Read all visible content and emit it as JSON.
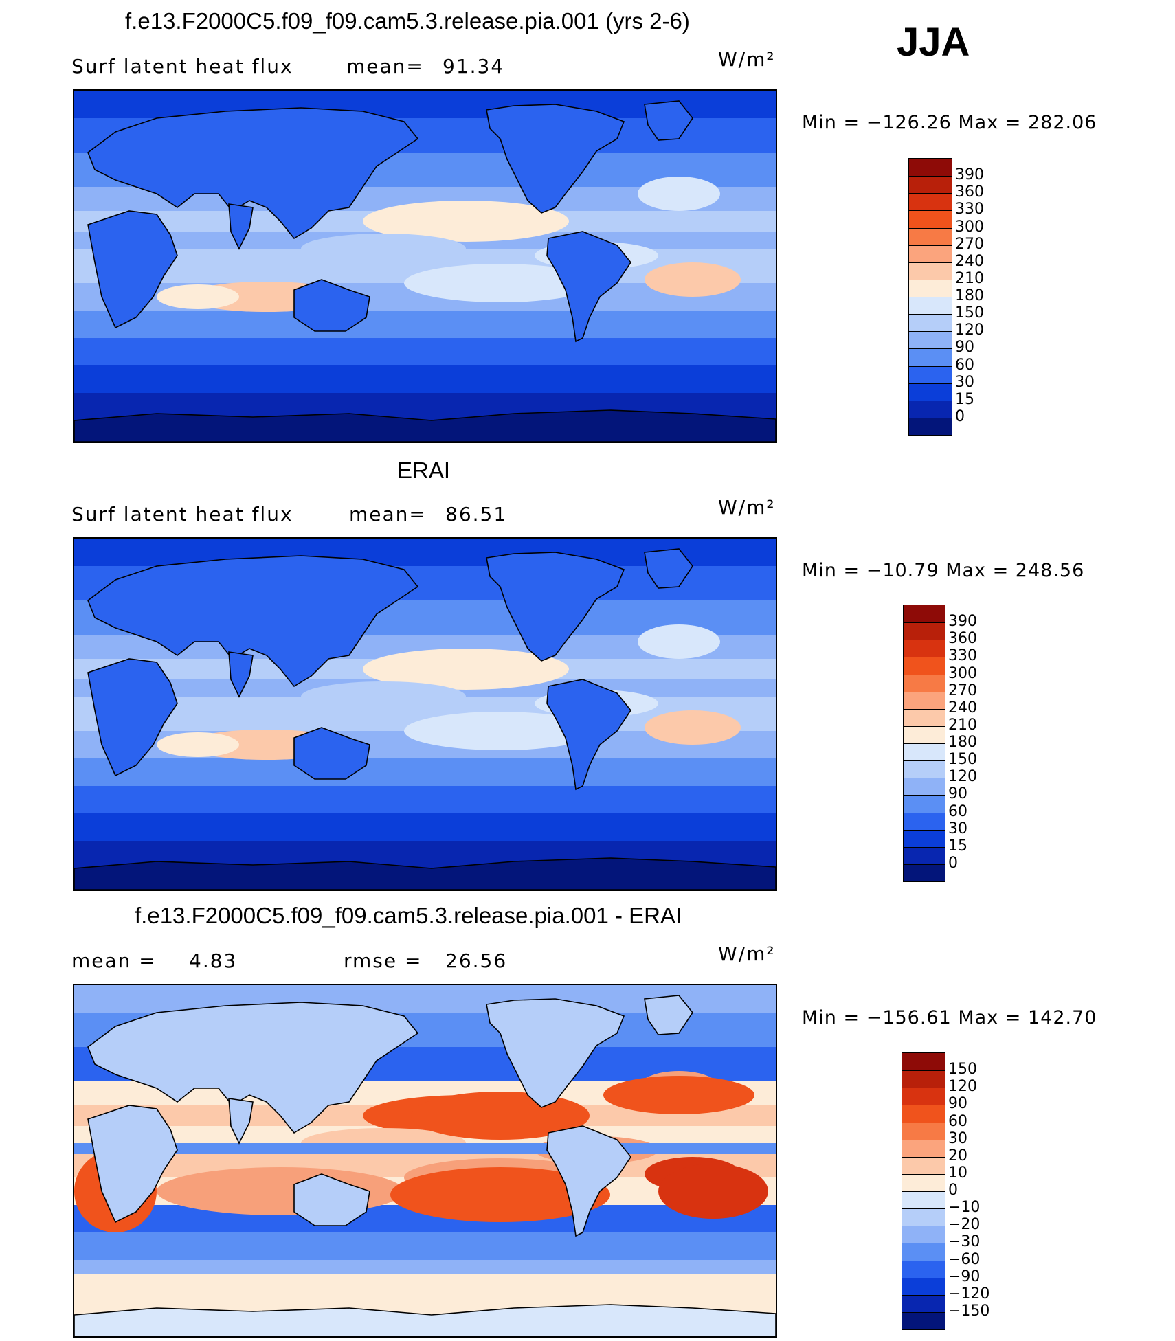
{
  "season": "JJA",
  "panels": [
    {
      "title": "f.e13.F2000C5.f09_f09.cam5.3.release.pia.001 (yrs 2-6)",
      "variable": "Surf  latent  heat  flux",
      "stat_label": "mean=",
      "stat_value": "91.34",
      "units": "W/m²",
      "minmax": "Min  =  −126.26  Max  =  282.06",
      "colorbar": {
        "labels": [
          "390",
          "360",
          "330",
          "300",
          "270",
          "240",
          "210",
          "180",
          "150",
          "120",
          "90",
          "60",
          "30",
          "15",
          "0"
        ],
        "colors": [
          "#8e0b07",
          "#b8200a",
          "#d83310",
          "#f0531c",
          "#f77a45",
          "#fba47d",
          "#fcc9aa",
          "#fdecd8",
          "#d8e7fb",
          "#b5cef9",
          "#8fb2f7",
          "#5b8ff4",
          "#2b63ef",
          "#0b3ed9",
          "#0826b0",
          "#03157a"
        ]
      },
      "palette": {
        "c0": "#03157a",
        "c1": "#0826b0",
        "c2": "#0b3ed9",
        "c3": "#2b63ef",
        "c4": "#5b8ff4",
        "c5": "#8fb2f7",
        "c6": "#b5cef9",
        "c7": "#d8e7fb",
        "c8": "#fdecd8",
        "c9": "#fcc9aa",
        "c10": "#f7a07a"
      }
    },
    {
      "title": "ERAI",
      "variable": "Surf  latent  heat  flux",
      "stat_label": "mean=",
      "stat_value": "86.51",
      "units": "W/m²",
      "minmax": "Min  =  −10.79  Max  =  248.56",
      "colorbar": {
        "labels": [
          "390",
          "360",
          "330",
          "300",
          "270",
          "240",
          "210",
          "180",
          "150",
          "120",
          "90",
          "60",
          "30",
          "15",
          "0"
        ],
        "colors": [
          "#8e0b07",
          "#b8200a",
          "#d83310",
          "#f0531c",
          "#f77a45",
          "#fba47d",
          "#fcc9aa",
          "#fdecd8",
          "#d8e7fb",
          "#b5cef9",
          "#8fb2f7",
          "#5b8ff4",
          "#2b63ef",
          "#0b3ed9",
          "#0826b0",
          "#03157a"
        ]
      },
      "palette": {
        "c0": "#03157a",
        "c1": "#0826b0",
        "c2": "#0b3ed9",
        "c3": "#2b63ef",
        "c4": "#5b8ff4",
        "c5": "#8fb2f7",
        "c6": "#b5cef9",
        "c7": "#d8e7fb",
        "c8": "#fdecd8",
        "c9": "#fcc9aa",
        "c10": "#f7a07a"
      }
    },
    {
      "title": "f.e13.F2000C5.f09_f09.cam5.3.release.pia.001 - ERAI",
      "mean_label": "mean  =",
      "mean_value": "4.83",
      "rmse_label": "rmse  =",
      "rmse_value": "26.56",
      "units": "W/m²",
      "minmax": "Min  =  −156.61  Max  =  142.70",
      "colorbar": {
        "labels": [
          "150",
          "120",
          "90",
          "60",
          "30",
          "20",
          "10",
          "0",
          "−10",
          "−20",
          "−30",
          "−60",
          "−90",
          "−120",
          "−150"
        ],
        "colors": [
          "#8e0b07",
          "#b8200a",
          "#d83310",
          "#f0531c",
          "#f77a45",
          "#fba47d",
          "#fcc9aa",
          "#fdecd8",
          "#d8e7fb",
          "#b5cef9",
          "#8fb2f7",
          "#5b8ff4",
          "#2b63ef",
          "#0b3ed9",
          "#0826b0",
          "#03157a"
        ]
      },
      "palette": {
        "c0": "#d8e7fb",
        "c1": "#b5cef9",
        "c2": "#8fb2f7",
        "c3": "#5b8ff4",
        "c4": "#2b63ef",
        "c5": "#fdecd8",
        "c6": "#fcc9aa",
        "c7": "#f7a07a",
        "c8": "#f0531c",
        "c9": "#d83310",
        "c10": "#b8200a"
      }
    }
  ]
}
